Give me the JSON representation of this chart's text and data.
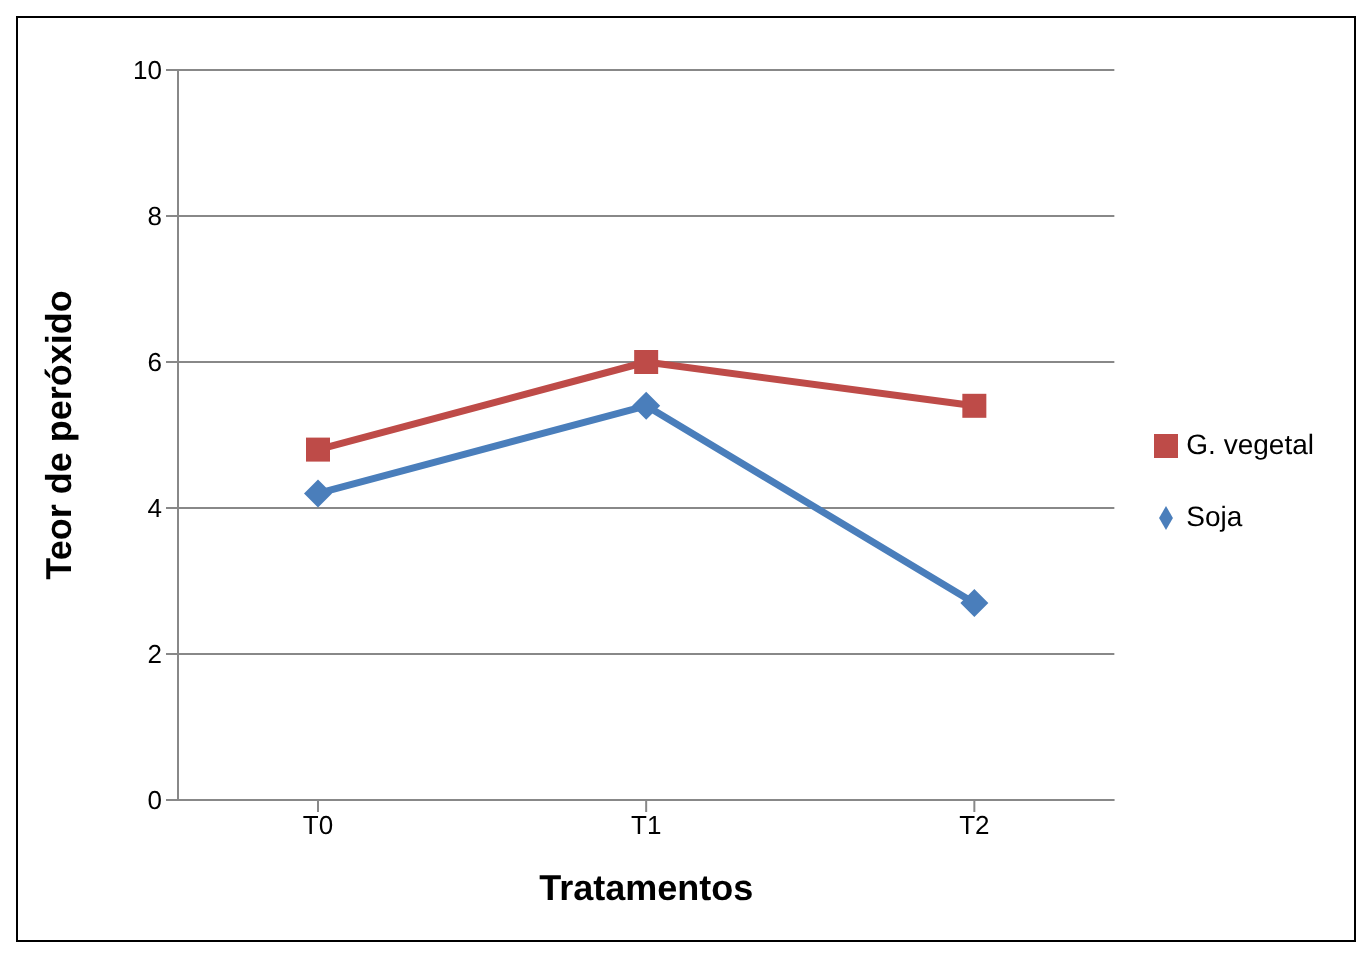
{
  "chart_data": {
    "type": "line",
    "xlabel": "Tratamentos",
    "ylabel": "Teor de peróxido",
    "categories": [
      "T0",
      "T1",
      "T2"
    ],
    "series": [
      {
        "name": "Soja",
        "color": "#4a7ebb",
        "values": [
          4.2,
          5.4,
          2.7
        ],
        "marker": "diamond"
      },
      {
        "name": "G. vegetal",
        "color": "#be4b48",
        "values": [
          4.8,
          6.0,
          5.4
        ],
        "marker": "square"
      }
    ],
    "ylim": [
      0,
      10
    ],
    "yticks": [
      0,
      2,
      4,
      6,
      8,
      10
    ],
    "grid": "y",
    "legend": "right"
  }
}
